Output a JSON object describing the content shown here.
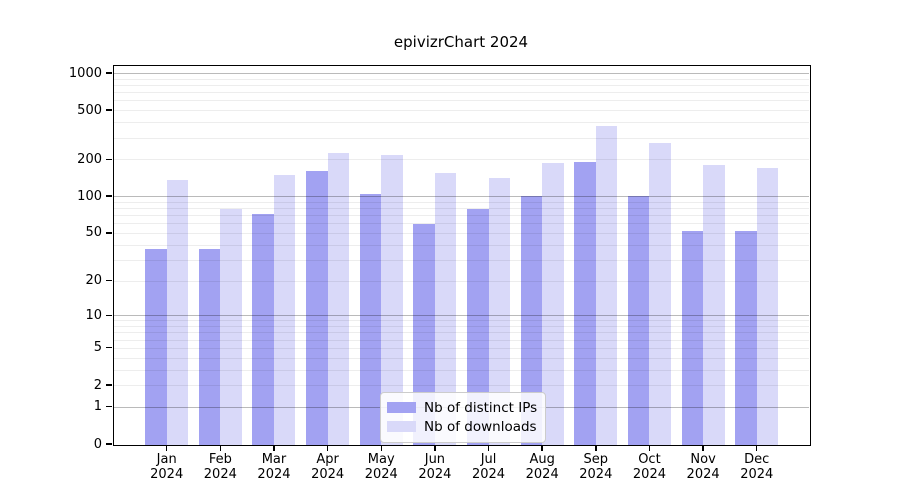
{
  "title": "epivizrChart 2024",
  "chart_data": {
    "type": "bar",
    "title": "epivizrChart 2024",
    "categories": [
      "Jan 2024",
      "Feb 2024",
      "Mar 2024",
      "Apr 2024",
      "May 2024",
      "Jun 2024",
      "Jul 2024",
      "Aug 2024",
      "Sep 2024",
      "Oct 2024",
      "Nov 2024",
      "Dec 2024"
    ],
    "series": [
      {
        "name": "Nb of distinct IPs",
        "color": "#a2a2f2",
        "values": [
          37,
          37,
          71,
          160,
          105,
          59,
          78,
          100,
          190,
          100,
          52,
          52
        ]
      },
      {
        "name": "Nb of downloads",
        "color": "#d9d9f9",
        "values": [
          135,
          78,
          150,
          225,
          215,
          155,
          140,
          185,
          375,
          270,
          180,
          170
        ]
      }
    ],
    "xlabel": "",
    "ylabel": "",
    "yscale": "log1p",
    "yticks": [
      0,
      1,
      2,
      5,
      10,
      20,
      50,
      100,
      200,
      500,
      1000
    ],
    "ylim": [
      0,
      1160
    ],
    "grid": true,
    "legend_position": "bottom-center",
    "colors": {
      "axis": "#000000",
      "major_grid": "#bababa",
      "minor_grid": "#ededed",
      "background": "#ffffff"
    }
  }
}
